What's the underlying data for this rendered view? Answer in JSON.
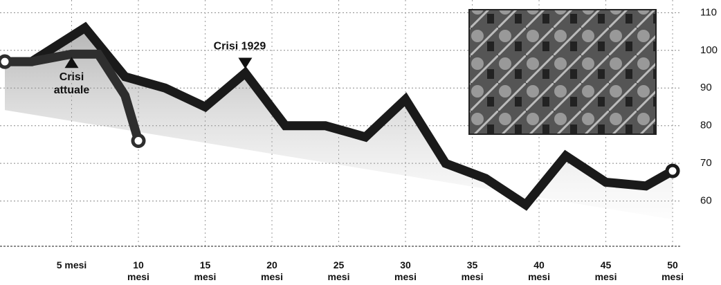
{
  "chart_data": {
    "type": "line",
    "series": [
      {
        "name": "Crisi 1929",
        "color": "#1a1a1a",
        "x": [
          0,
          2,
          6,
          9,
          12,
          15,
          18,
          21,
          24,
          27,
          30,
          33,
          36,
          39,
          42,
          45,
          48,
          50
        ],
        "values": [
          97,
          97,
          106,
          93,
          90,
          85,
          94,
          80,
          80,
          77,
          87,
          70,
          66,
          59,
          72,
          65,
          64,
          68
        ]
      },
      {
        "name": "Crisi attuale",
        "color": "#2e2e2e",
        "x": [
          0,
          2,
          5,
          7,
          9,
          10
        ],
        "values": [
          97,
          97,
          99,
          99,
          88,
          76
        ]
      }
    ],
    "xlim": [
      0,
      51.5
    ],
    "ylim": [
      48,
      113
    ],
    "xticks": [
      {
        "value": 5,
        "label": "5 mesi"
      },
      {
        "value": 10,
        "label": "10 mesi"
      },
      {
        "value": 15,
        "label": "15 mesi"
      },
      {
        "value": 20,
        "label": "20 mesi"
      },
      {
        "value": 25,
        "label": "25 mesi"
      },
      {
        "value": 30,
        "label": "30 mesi"
      },
      {
        "value": 35,
        "label": "35 mesi"
      },
      {
        "value": 40,
        "label": "40 mesi"
      },
      {
        "value": 45,
        "label": "45 mesi"
      },
      {
        "value": 50,
        "label": "50 mesi"
      }
    ],
    "yticks": [
      60,
      70,
      80,
      90,
      100,
      110
    ],
    "grid": true
  }
}
